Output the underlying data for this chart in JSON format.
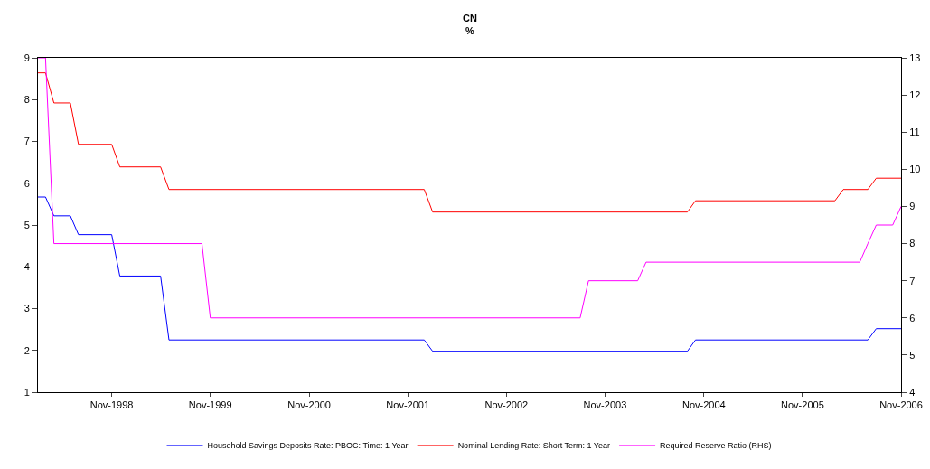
{
  "chart_data": {
    "type": "line",
    "title": "CN",
    "subtitle": "%",
    "legend": "bottom",
    "grid": false,
    "marker": "none",
    "line_style": "solid",
    "xlim": [
      "1998-02",
      "2006-11"
    ],
    "xticks": [
      {
        "value": "1998-11",
        "label": "Nov-1998"
      },
      {
        "value": "1999-11",
        "label": "Nov-1999"
      },
      {
        "value": "2000-11",
        "label": "Nov-2000"
      },
      {
        "value": "2001-11",
        "label": "Nov-2001"
      },
      {
        "value": "2002-11",
        "label": "Nov-2002"
      },
      {
        "value": "2003-11",
        "label": "Nov-2003"
      },
      {
        "value": "2004-11",
        "label": "Nov-2004"
      },
      {
        "value": "2005-11",
        "label": "Nov-2005"
      },
      {
        "value": "2006-11",
        "label": "Nov-2006"
      }
    ],
    "ylim": [
      1,
      9
    ],
    "yticks": [
      1,
      2,
      3,
      4,
      5,
      6,
      7,
      8,
      9
    ],
    "y2lim": [
      4,
      13
    ],
    "y2ticks": [
      4,
      5,
      6,
      7,
      8,
      9,
      10,
      11,
      12,
      13
    ],
    "series": [
      {
        "name": "Household Savings Deposits Rate: PBOC: Time: 1 Year",
        "color": "#0000ff",
        "x": [
          "1998-02",
          "1998-03",
          "1998-04",
          "1998-06",
          "1998-07",
          "1998-11",
          "1998-12",
          "1999-05",
          "1999-06",
          "2002-01",
          "2002-02",
          "2004-09",
          "2004-10",
          "2006-07",
          "2006-08",
          "2006-11"
        ],
        "values": [
          5.67,
          5.67,
          5.22,
          5.22,
          4.77,
          4.77,
          3.78,
          3.78,
          2.25,
          2.25,
          1.98,
          1.98,
          2.25,
          2.25,
          2.52,
          2.52
        ]
      },
      {
        "name": "Nominal Lending Rate: Short Term: 1 Year",
        "color": "#ff0000",
        "x": [
          "1998-02",
          "1998-03",
          "1998-04",
          "1998-06",
          "1998-07",
          "1998-11",
          "1998-12",
          "1999-05",
          "1999-06",
          "2002-01",
          "2002-02",
          "2004-09",
          "2004-10",
          "2006-03",
          "2006-04",
          "2006-07",
          "2006-08",
          "2006-11"
        ],
        "values": [
          8.64,
          8.64,
          7.92,
          7.92,
          6.93,
          6.93,
          6.39,
          6.39,
          5.85,
          5.85,
          5.31,
          5.31,
          5.58,
          5.58,
          5.85,
          5.85,
          6.12,
          6.12
        ]
      },
      {
        "name": "Required Reserve Ratio (RHS)",
        "color": "#ff00ff",
        "axis": "y2",
        "x": [
          "1998-02",
          "1998-03",
          "1998-04",
          "1999-10",
          "1999-11",
          "2003-08",
          "2003-09",
          "2004-03",
          "2004-04",
          "2006-06",
          "2006-07",
          "2006-08",
          "2006-10",
          "2006-11"
        ],
        "values": [
          13,
          13,
          8,
          8,
          6,
          6,
          7,
          7,
          7.5,
          7.5,
          8,
          8.5,
          8.5,
          9
        ]
      }
    ]
  }
}
